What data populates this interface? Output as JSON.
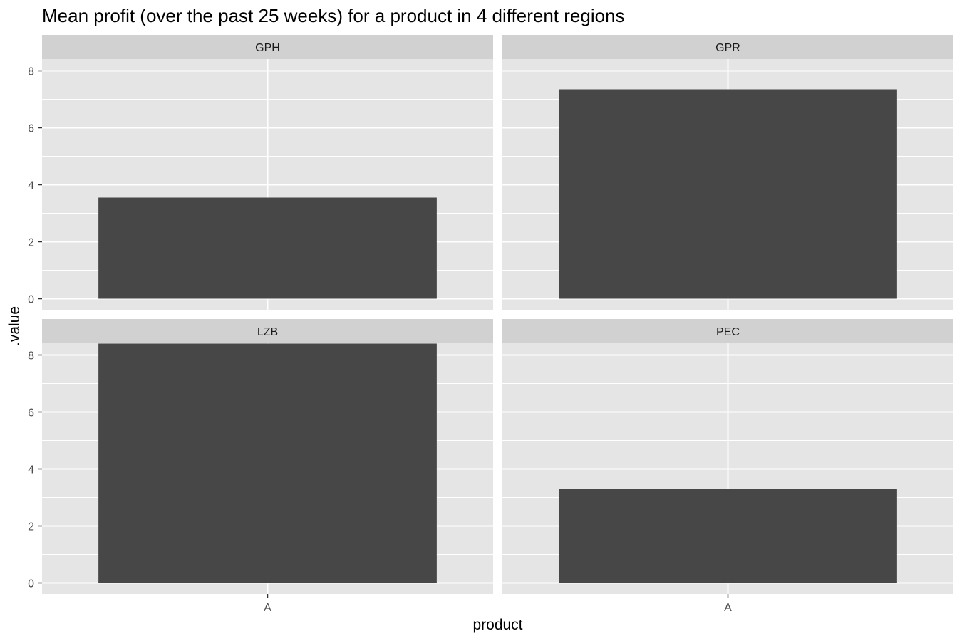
{
  "chart_data": {
    "type": "bar",
    "title": "Mean profit (over the past 25 weeks) for a product in 4 different regions",
    "xlabel": "product",
    "ylabel": ".value",
    "categories": [
      "A"
    ],
    "ylim": [
      0,
      8.4
    ],
    "yticks": [
      0,
      2,
      4,
      6,
      8
    ],
    "grid": true,
    "legend": "none",
    "facet_order": "row-wise, 2 columns",
    "series": [
      {
        "name": "GPH",
        "values": [
          3.55
        ]
      },
      {
        "name": "GPR",
        "values": [
          7.35
        ]
      },
      {
        "name": "LZB",
        "values": [
          8.4
        ]
      },
      {
        "name": "PEC",
        "values": [
          3.3
        ]
      }
    ],
    "colors": {
      "bar": "#474747",
      "panel_background": "#e5e5e5",
      "strip_background": "#d1d1d1",
      "grid": "#ffffff",
      "axis_text": "#4d4d4d"
    }
  }
}
